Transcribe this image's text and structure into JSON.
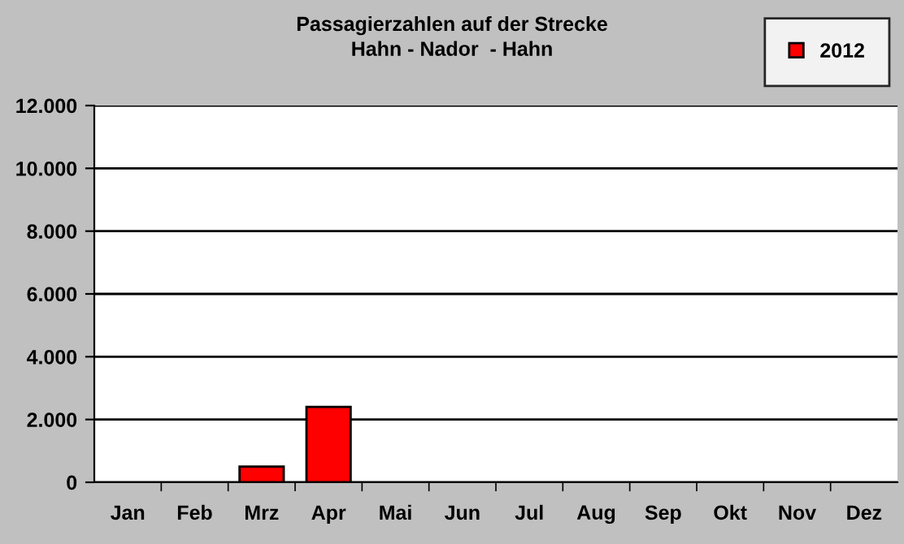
{
  "chart_data": {
    "type": "bar",
    "title": "Passagierzahlen auf der Strecke\nHahn - Nador  - Hahn",
    "categories": [
      "Jan",
      "Feb",
      "Mrz",
      "Apr",
      "Mai",
      "Jun",
      "Jul",
      "Aug",
      "Sep",
      "Okt",
      "Nov",
      "Dez"
    ],
    "series": [
      {
        "name": "2012",
        "color": "#ff0000",
        "values": [
          null,
          null,
          500,
          2400,
          null,
          null,
          null,
          null,
          null,
          null,
          null,
          null
        ]
      }
    ],
    "ylim": [
      0,
      12000
    ],
    "yticks": [
      {
        "value": 0,
        "label": "0"
      },
      {
        "value": 2000,
        "label": "2.000"
      },
      {
        "value": 4000,
        "label": "4.000"
      },
      {
        "value": 6000,
        "label": "6.000"
      },
      {
        "value": 8000,
        "label": "8.000"
      },
      {
        "value": 10000,
        "label": "10.000"
      },
      {
        "value": 12000,
        "label": "12.000"
      }
    ],
    "grid": "y",
    "legend": "top right"
  }
}
